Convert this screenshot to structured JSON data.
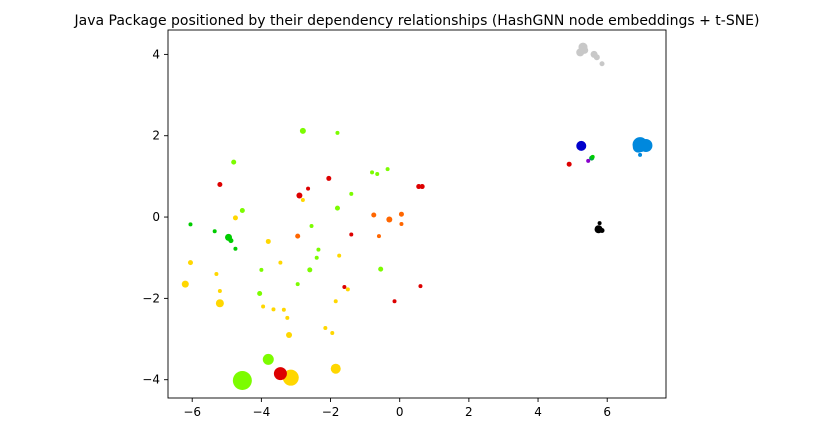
{
  "chart_data": {
    "type": "scatter",
    "title": "Java Package positioned by their dependency relationships (HashGNN node embeddings + t-SNE)",
    "xlabel": "",
    "ylabel": "",
    "xlim": [
      -6.7,
      7.7
    ],
    "ylim": [
      -4.45,
      4.6
    ],
    "x_ticks": [
      -6,
      -4,
      -2,
      0,
      2,
      4,
      6
    ],
    "y_ticks": [
      -4,
      -2,
      0,
      2,
      4
    ],
    "x_tick_labels": [
      "−6",
      "−4",
      "−2",
      "0",
      "2",
      "4",
      "6"
    ],
    "y_tick_labels": [
      "−4",
      "−2",
      "0",
      "2",
      "4"
    ],
    "grid": false,
    "legend": "none",
    "points": [
      {
        "x": -4.55,
        "y": -4.02,
        "size": 9.5,
        "color": "#7cfc00"
      },
      {
        "x": -3.15,
        "y": -3.95,
        "size": 8.0,
        "color": "#ffd700"
      },
      {
        "x": -3.45,
        "y": -3.85,
        "size": 6.5,
        "color": "#dd0000"
      },
      {
        "x": -3.8,
        "y": -3.5,
        "size": 5.5,
        "color": "#7cfc00"
      },
      {
        "x": -1.85,
        "y": -3.73,
        "size": 5.0,
        "color": "#ffd700"
      },
      {
        "x": -6.2,
        "y": -1.65,
        "size": 3.5,
        "color": "#ffd700"
      },
      {
        "x": -5.2,
        "y": -2.12,
        "size": 4.0,
        "color": "#ffd700"
      },
      {
        "x": -3.2,
        "y": -2.9,
        "size": 3.0,
        "color": "#ffd700"
      },
      {
        "x": -2.15,
        "y": -2.73,
        "size": 2.0,
        "color": "#ffd700"
      },
      {
        "x": -1.95,
        "y": -2.85,
        "size": 2.0,
        "color": "#ffd700"
      },
      {
        "x": -3.25,
        "y": -2.48,
        "size": 2.0,
        "color": "#ffd700"
      },
      {
        "x": -3.35,
        "y": -2.28,
        "size": 2.0,
        "color": "#ffd700"
      },
      {
        "x": -3.65,
        "y": -2.27,
        "size": 2.0,
        "color": "#ffd700"
      },
      {
        "x": -3.95,
        "y": -2.2,
        "size": 2.0,
        "color": "#ffd700"
      },
      {
        "x": -1.85,
        "y": -2.07,
        "size": 2.0,
        "color": "#ffd700"
      },
      {
        "x": -5.3,
        "y": -1.4,
        "size": 2.0,
        "color": "#ffd700"
      },
      {
        "x": -5.2,
        "y": -1.82,
        "size": 2.0,
        "color": "#ffd700"
      },
      {
        "x": -6.05,
        "y": -1.12,
        "size": 2.5,
        "color": "#ffd700"
      },
      {
        "x": -3.45,
        "y": -1.12,
        "size": 2.0,
        "color": "#ffd700"
      },
      {
        "x": -1.75,
        "y": -0.95,
        "size": 2.0,
        "color": "#ffd700"
      },
      {
        "x": -3.8,
        "y": -0.6,
        "size": 2.5,
        "color": "#ffd700"
      },
      {
        "x": -4.75,
        "y": -0.02,
        "size": 2.5,
        "color": "#ffd700"
      },
      {
        "x": -2.8,
        "y": 0.42,
        "size": 2.0,
        "color": "#ffd700"
      },
      {
        "x": -1.5,
        "y": -1.78,
        "size": 2.0,
        "color": "#ffd700"
      },
      {
        "x": -4.05,
        "y": -1.88,
        "size": 2.5,
        "color": "#7cfc00"
      },
      {
        "x": -2.95,
        "y": -1.65,
        "size": 2.0,
        "color": "#7cfc00"
      },
      {
        "x": -4.0,
        "y": -1.3,
        "size": 2.0,
        "color": "#7cfc00"
      },
      {
        "x": -2.6,
        "y": -1.3,
        "size": 2.5,
        "color": "#7cfc00"
      },
      {
        "x": -0.55,
        "y": -1.28,
        "size": 2.5,
        "color": "#7cfc00"
      },
      {
        "x": -2.4,
        "y": -1.0,
        "size": 2.0,
        "color": "#7cfc00"
      },
      {
        "x": -2.35,
        "y": -0.8,
        "size": 2.0,
        "color": "#7cfc00"
      },
      {
        "x": -2.55,
        "y": -0.22,
        "size": 2.0,
        "color": "#7cfc00"
      },
      {
        "x": -4.55,
        "y": 0.16,
        "size": 2.5,
        "color": "#7cfc00"
      },
      {
        "x": -1.8,
        "y": 0.22,
        "size": 2.5,
        "color": "#7cfc00"
      },
      {
        "x": -1.4,
        "y": 0.57,
        "size": 2.0,
        "color": "#7cfc00"
      },
      {
        "x": -0.8,
        "y": 1.1,
        "size": 2.0,
        "color": "#7cfc00"
      },
      {
        "x": -0.65,
        "y": 1.06,
        "size": 2.0,
        "color": "#7cfc00"
      },
      {
        "x": -0.35,
        "y": 1.18,
        "size": 2.0,
        "color": "#7cfc00"
      },
      {
        "x": -4.8,
        "y": 1.35,
        "size": 2.5,
        "color": "#7cfc00"
      },
      {
        "x": -2.8,
        "y": 2.12,
        "size": 3.0,
        "color": "#7cfc00"
      },
      {
        "x": -1.8,
        "y": 2.07,
        "size": 2.0,
        "color": "#7cfc00"
      },
      {
        "x": -4.95,
        "y": -0.5,
        "size": 3.5,
        "color": "#00cc00"
      },
      {
        "x": -4.88,
        "y": -0.58,
        "size": 2.5,
        "color": "#00cc00"
      },
      {
        "x": -4.75,
        "y": -0.78,
        "size": 2.0,
        "color": "#00cc00"
      },
      {
        "x": -5.35,
        "y": -0.35,
        "size": 2.0,
        "color": "#00cc00"
      },
      {
        "x": -6.05,
        "y": -0.18,
        "size": 2.0,
        "color": "#00cc00"
      },
      {
        "x": -2.95,
        "y": -0.47,
        "size": 2.5,
        "color": "#ff6600"
      },
      {
        "x": -0.75,
        "y": 0.05,
        "size": 2.5,
        "color": "#ff6600"
      },
      {
        "x": -0.3,
        "y": -0.06,
        "size": 3.0,
        "color": "#ff6600"
      },
      {
        "x": 0.05,
        "y": 0.07,
        "size": 2.5,
        "color": "#ff6600"
      },
      {
        "x": 0.05,
        "y": -0.17,
        "size": 2.0,
        "color": "#ff6600"
      },
      {
        "x": -0.6,
        "y": -0.47,
        "size": 2.0,
        "color": "#ff6600"
      },
      {
        "x": -5.2,
        "y": 0.8,
        "size": 2.5,
        "color": "#dd0000"
      },
      {
        "x": -2.9,
        "y": 0.53,
        "size": 3.0,
        "color": "#dd0000"
      },
      {
        "x": -2.65,
        "y": 0.7,
        "size": 2.0,
        "color": "#dd0000"
      },
      {
        "x": -2.05,
        "y": 0.95,
        "size": 2.5,
        "color": "#dd0000"
      },
      {
        "x": -1.4,
        "y": -0.43,
        "size": 2.0,
        "color": "#dd0000"
      },
      {
        "x": -1.6,
        "y": -1.72,
        "size": 2.0,
        "color": "#dd0000"
      },
      {
        "x": -0.15,
        "y": -2.07,
        "size": 2.0,
        "color": "#dd0000"
      },
      {
        "x": 0.55,
        "y": 0.75,
        "size": 2.5,
        "color": "#dd0000"
      },
      {
        "x": 0.65,
        "y": 0.75,
        "size": 2.5,
        "color": "#dd0000"
      },
      {
        "x": 0.6,
        "y": -1.7,
        "size": 2.0,
        "color": "#dd0000"
      },
      {
        "x": 4.9,
        "y": 1.3,
        "size": 2.5,
        "color": "#dd0000"
      },
      {
        "x": 5.3,
        "y": 4.18,
        "size": 4.5,
        "color": "#c8c8c8"
      },
      {
        "x": 5.22,
        "y": 4.05,
        "size": 4.0,
        "color": "#c8c8c8"
      },
      {
        "x": 5.35,
        "y": 4.1,
        "size": 3.5,
        "color": "#c8c8c8"
      },
      {
        "x": 5.62,
        "y": 4.0,
        "size": 3.5,
        "color": "#c8c8c8"
      },
      {
        "x": 5.7,
        "y": 3.93,
        "size": 3.0,
        "color": "#c8c8c8"
      },
      {
        "x": 5.85,
        "y": 3.77,
        "size": 2.5,
        "color": "#c8c8c8"
      },
      {
        "x": 6.95,
        "y": 1.78,
        "size": 7.5,
        "color": "#0088dd"
      },
      {
        "x": 7.12,
        "y": 1.76,
        "size": 6.5,
        "color": "#0088dd"
      },
      {
        "x": 6.9,
        "y": 1.72,
        "size": 5.5,
        "color": "#0088dd"
      },
      {
        "x": 6.95,
        "y": 1.53,
        "size": 2.0,
        "color": "#0088dd"
      },
      {
        "x": 5.25,
        "y": 1.75,
        "size": 5.0,
        "color": "#0000cc"
      },
      {
        "x": 5.55,
        "y": 1.45,
        "size": 2.5,
        "color": "#00aa44"
      },
      {
        "x": 5.58,
        "y": 1.48,
        "size": 2.0,
        "color": "#00cc00"
      },
      {
        "x": 5.45,
        "y": 1.38,
        "size": 2.0,
        "color": "#8800cc"
      },
      {
        "x": 5.75,
        "y": -0.3,
        "size": 4.0,
        "color": "#000000"
      },
      {
        "x": 5.85,
        "y": -0.33,
        "size": 2.5,
        "color": "#000000"
      },
      {
        "x": 5.78,
        "y": -0.15,
        "size": 2.0,
        "color": "#000000"
      }
    ]
  }
}
